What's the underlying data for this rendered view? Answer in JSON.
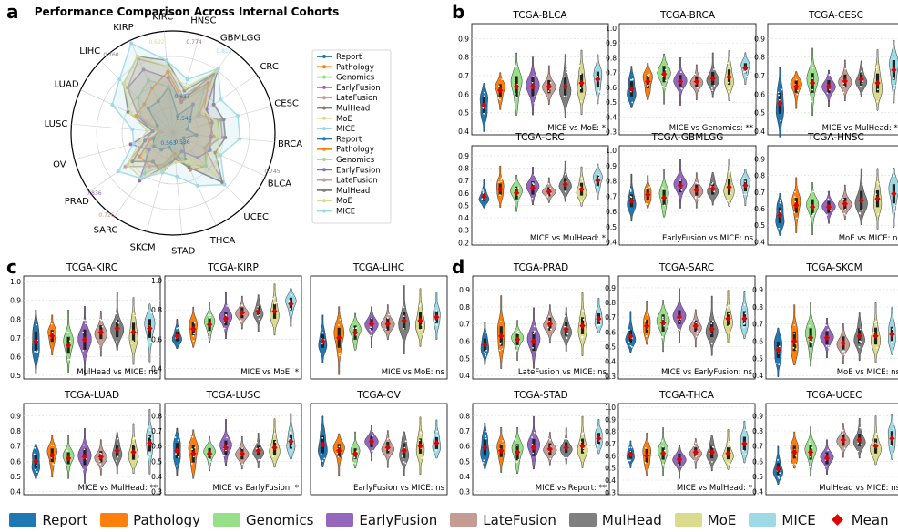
{
  "colors": {
    "Report": "#1f77b4",
    "Pathology": "#ff7f0e",
    "Genomics": "#98df8a",
    "EarlyFusion": "#9467bd",
    "LateFusion": "#c49c94",
    "MulHead": "#7f7f7f",
    "MoE": "#dbdb8d",
    "MICE": "#9edae5",
    "Mean": "#e00000"
  },
  "panel_labels": [
    "a",
    "b",
    "c",
    "d"
  ],
  "legend": {
    "items": [
      "Report",
      "Pathology",
      "Genomics",
      "EarlyFusion",
      "LateFusion",
      "MulHead",
      "MoE",
      "MICE"
    ],
    "mean_label": "Mean"
  },
  "chart_data": [
    {
      "type": "radar",
      "title": "Performance Comparison Across Internal Cohorts",
      "axes": [
        "HNSC",
        "GBMLGG",
        "CRC",
        "CESC",
        "BRCA",
        "BLCA",
        "UCEC",
        "THCA",
        "STAD",
        "SKCM",
        "SARC",
        "PRAD",
        "OV",
        "LUSC",
        "LUAD",
        "LIHC",
        "KIRP",
        "KIRC"
      ],
      "visible_value_labels": [
        "0.692",
        "0.774",
        "0.813",
        "0.760",
        "0.745",
        "0.637",
        "0.546",
        "0.536",
        "0.563",
        "0.836",
        "0.726"
      ],
      "legend_entries": [
        "Report",
        "Pathology",
        "Genomics",
        "EarlyFusion",
        "LateFusion",
        "MulHead",
        "MoE",
        "MICE",
        "Report",
        "Pathology",
        "Genomics",
        "EarlyFusion",
        "LateFusion",
        "MulHead",
        "MoE",
        "MICE"
      ],
      "series": [
        {
          "name": "Report",
          "values": [
            0.562,
            0.62,
            0.57,
            0.55,
            0.58,
            0.54,
            0.55,
            0.6,
            0.58,
            0.55,
            0.57,
            0.58,
            0.57,
            0.55,
            0.56,
            0.62,
            0.62,
            0.66
          ]
        },
        {
          "name": "Pathology",
          "values": [
            0.62,
            0.71,
            0.63,
            0.63,
            0.64,
            0.62,
            0.66,
            0.64,
            0.57,
            0.61,
            0.64,
            0.64,
            0.58,
            0.55,
            0.64,
            0.64,
            0.67,
            0.71
          ]
        },
        {
          "name": "Genomics",
          "values": [
            0.61,
            0.69,
            0.6,
            0.66,
            0.66,
            0.63,
            0.66,
            0.62,
            0.56,
            0.61,
            0.67,
            0.61,
            0.55,
            0.55,
            0.62,
            0.67,
            0.7,
            0.66
          ]
        },
        {
          "name": "EarlyFusion",
          "values": [
            0.61,
            0.77,
            0.64,
            0.64,
            0.63,
            0.64,
            0.62,
            0.57,
            0.59,
            0.62,
            0.7,
            0.6,
            0.65,
            0.57,
            0.63,
            0.72,
            0.74,
            0.69
          ]
        },
        {
          "name": "LateFusion",
          "values": [
            0.63,
            0.74,
            0.61,
            0.67,
            0.67,
            0.62,
            0.74,
            0.63,
            0.58,
            0.62,
            0.64,
            0.7,
            0.6,
            0.54,
            0.63,
            0.72,
            0.78,
            0.73
          ]
        },
        {
          "name": "MulHead",
          "values": [
            0.65,
            0.75,
            0.67,
            0.68,
            0.68,
            0.66,
            0.74,
            0.63,
            0.59,
            0.64,
            0.62,
            0.67,
            0.6,
            0.57,
            0.67,
            0.74,
            0.79,
            0.75
          ]
        },
        {
          "name": "MoE",
          "values": [
            0.66,
            0.76,
            0.63,
            0.65,
            0.66,
            0.67,
            0.7,
            0.61,
            0.6,
            0.63,
            0.69,
            0.69,
            0.62,
            0.59,
            0.66,
            0.74,
            0.79,
            0.73
          ]
        },
        {
          "name": "MICE",
          "values": [
            0.69,
            0.77,
            0.7,
            0.73,
            0.73,
            0.68,
            0.75,
            0.7,
            0.65,
            0.64,
            0.69,
            0.73,
            0.64,
            0.64,
            0.73,
            0.76,
            0.84,
            0.75
          ]
        }
      ]
    },
    {
      "type": "violin",
      "panels": [
        {
          "title": "TCGA-BLCA",
          "annotation": "MICE vs MoE: *",
          "yticks": [
            "0.4",
            "0.5",
            "0.6",
            "0.7",
            "0.8",
            "0.9"
          ],
          "ylim": [
            0.38,
            0.98
          ],
          "means": [
            0.54,
            0.62,
            0.64,
            0.64,
            0.64,
            0.64,
            0.66,
            0.68
          ]
        },
        {
          "title": "TCGA-BRCA",
          "annotation": "MICE vs Genomics: **",
          "yticks": [
            "0.3",
            "0.4",
            "0.5",
            "0.6",
            "0.7",
            "0.8",
            "0.9",
            "1.0"
          ],
          "ylim": [
            0.28,
            1.03
          ],
          "means": [
            0.59,
            0.64,
            0.69,
            0.64,
            0.64,
            0.66,
            0.67,
            0.73
          ]
        },
        {
          "title": "TCGA-CESC",
          "annotation": "MICE vs MulHead: **",
          "yticks": [
            "0.4",
            "0.5",
            "0.6",
            "0.7",
            "0.8",
            "0.9"
          ],
          "ylim": [
            0.38,
            0.98
          ],
          "means": [
            0.55,
            0.64,
            0.66,
            0.64,
            0.67,
            0.68,
            0.66,
            0.73
          ]
        },
        {
          "title": "TCGA-CRC",
          "annotation": "MICE vs MulHead: *",
          "yticks": [
            "0.2",
            "0.3",
            "0.4",
            "0.5",
            "0.6",
            "0.7",
            "0.8",
            "0.9"
          ],
          "ylim": [
            0.18,
            0.98
          ],
          "means": [
            0.57,
            0.63,
            0.6,
            0.64,
            0.61,
            0.67,
            0.63,
            0.7
          ]
        },
        {
          "title": "TCGA-GBMLGG",
          "annotation": "EarlyFusion vs MICE: ns",
          "yticks": [
            "0.4",
            "0.5",
            "0.6",
            "0.7",
            "0.8",
            "0.9",
            "1.0"
          ],
          "ylim": [
            0.38,
            1.03
          ],
          "means": [
            0.67,
            0.71,
            0.69,
            0.77,
            0.74,
            0.75,
            0.76,
            0.77
          ]
        },
        {
          "title": "TCGA-HNSC",
          "annotation": "MoE vs MICE: ns",
          "yticks": [
            "0.4",
            "0.5",
            "0.6",
            "0.7",
            "0.8",
            "0.9"
          ],
          "ylim": [
            0.38,
            0.98
          ],
          "means": [
            0.56,
            0.62,
            0.61,
            0.61,
            0.63,
            0.65,
            0.66,
            0.69
          ]
        },
        {
          "title": "TCGA-KIRC",
          "annotation": "MulHead vs MICE: ns",
          "yticks": [
            "0.5",
            "0.6",
            "0.7",
            "0.8",
            "0.9",
            "1.0"
          ],
          "ylim": [
            0.48,
            1.03
          ],
          "means": [
            0.68,
            0.71,
            0.66,
            0.69,
            0.73,
            0.75,
            0.73,
            0.75
          ]
        },
        {
          "title": "TCGA-KIRP",
          "annotation": "MICE vs MoE: *",
          "yticks": [
            "0.4",
            "0.6",
            "0.8",
            "1.0"
          ],
          "ylim": [
            0.33,
            1.03
          ],
          "means": [
            0.62,
            0.67,
            0.7,
            0.74,
            0.78,
            0.79,
            0.79,
            0.84
          ]
        },
        {
          "title": "TCGA-LIHC",
          "annotation": "MICE vs MoE: ns",
          "yticks": [],
          "ylim": [
            0.4,
            1.0
          ],
          "means": [
            0.62,
            0.64,
            0.67,
            0.72,
            0.72,
            0.74,
            0.74,
            0.76
          ]
        },
        {
          "title": "TCGA-LUAD",
          "annotation": "MICE vs MulHead: **",
          "yticks": [
            "0.4",
            "0.5",
            "0.6",
            "0.7",
            "0.8",
            "0.9"
          ],
          "ylim": [
            0.38,
            0.98
          ],
          "means": [
            0.6,
            0.64,
            0.62,
            0.63,
            0.63,
            0.67,
            0.66,
            0.72
          ]
        },
        {
          "title": "TCGA-LUSC",
          "annotation": "MICE vs EarlyFusion: *",
          "yticks": [
            "0.3",
            "0.4",
            "0.5",
            "0.6",
            "0.7",
            "0.8"
          ],
          "ylim": [
            0.28,
            0.88
          ],
          "means": [
            0.57,
            0.55,
            0.55,
            0.59,
            0.55,
            0.57,
            0.59,
            0.63
          ]
        },
        {
          "title": "TCGA-OV",
          "annotation": "EarlyFusion vs MICE: ns",
          "yticks": [],
          "ylim": [
            0.3,
            0.9
          ],
          "means": [
            0.63,
            0.59,
            0.57,
            0.65,
            0.61,
            0.59,
            0.62,
            0.64
          ]
        },
        {
          "title": "TCGA-PRAD",
          "annotation": "LateFusion vs MICE: ns",
          "yticks": [
            "0.4",
            "0.5",
            "0.6",
            "0.7",
            "0.8",
            "0.9"
          ],
          "ylim": [
            0.38,
            0.98
          ],
          "means": [
            0.58,
            0.63,
            0.61,
            0.6,
            0.7,
            0.67,
            0.69,
            0.73
          ]
        },
        {
          "title": "TCGA-SARC",
          "annotation": "MICE vs EarlyFusion: ns",
          "yticks": [
            "0.3",
            "0.4",
            "0.5",
            "0.6",
            "0.7",
            "0.8",
            "0.9"
          ],
          "ylim": [
            0.28,
            0.98
          ],
          "means": [
            0.57,
            0.64,
            0.66,
            0.7,
            0.64,
            0.62,
            0.69,
            0.69
          ]
        },
        {
          "title": "TCGA-SKCM",
          "annotation": "MoE vs MICE: ns",
          "yticks": [
            "0.4",
            "0.5",
            "0.6",
            "0.7",
            "0.8",
            "0.9"
          ],
          "ylim": [
            0.38,
            0.98
          ],
          "means": [
            0.55,
            0.6,
            0.62,
            0.62,
            0.59,
            0.63,
            0.63,
            0.64
          ]
        },
        {
          "title": "TCGA-STAD",
          "annotation": "MICE vs Report: **",
          "yticks": [
            "0.3",
            "0.4",
            "0.5",
            "0.6",
            "0.7",
            "0.8"
          ],
          "ylim": [
            0.28,
            0.88
          ],
          "means": [
            0.59,
            0.57,
            0.56,
            0.59,
            0.58,
            0.59,
            0.6,
            0.65
          ]
        },
        {
          "title": "TCGA-THCA",
          "annotation": "MICE vs MulHead: *",
          "yticks": [
            "0.3",
            "0.4",
            "0.5",
            "0.6",
            "0.7",
            "0.8",
            "0.9",
            "1.0"
          ],
          "ylim": [
            0.28,
            1.03
          ],
          "means": [
            0.61,
            0.6,
            0.62,
            0.57,
            0.63,
            0.63,
            0.62,
            0.7
          ]
        },
        {
          "title": "TCGA-UCEC",
          "annotation": "MulHead vs MICE: ns",
          "yticks": [
            "0.4",
            "0.5",
            "0.6",
            "0.7",
            "0.8",
            "0.9"
          ],
          "ylim": [
            0.38,
            0.98
          ],
          "means": [
            0.55,
            0.66,
            0.66,
            0.62,
            0.74,
            0.74,
            0.7,
            0.75
          ]
        }
      ]
    }
  ]
}
